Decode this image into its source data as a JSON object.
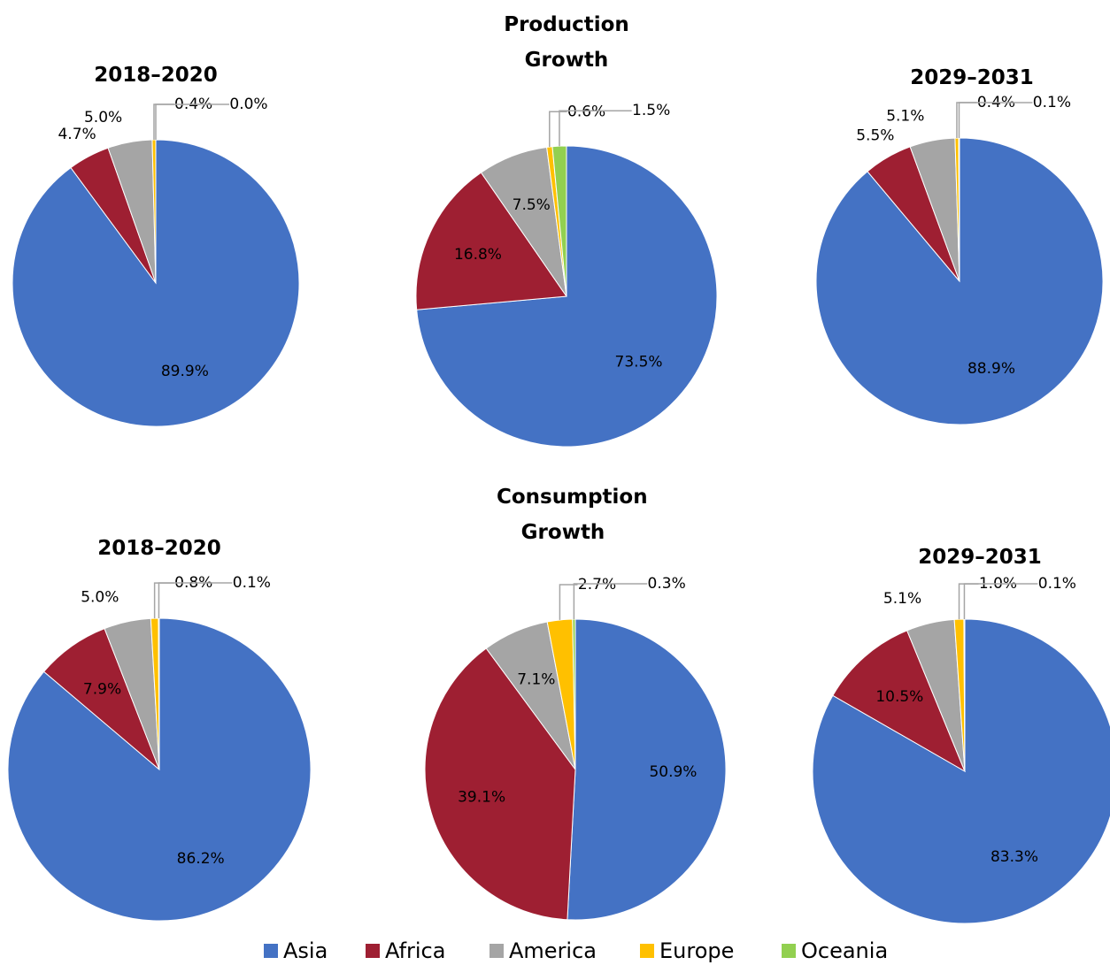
{
  "chart_data": [
    {
      "type": "pie",
      "title": "2018–2020",
      "categories": [
        "Asia",
        "Africa",
        "America",
        "Europe",
        "Oceania"
      ],
      "colors": [
        "#4472c4",
        "#9e1f32",
        "#a5a5a5",
        "#ffc000",
        "#92d050"
      ],
      "values": [
        89.9,
        4.7,
        5.0,
        0.4,
        0.0
      ],
      "value_labels": [
        "89.9%",
        "4.7%",
        "5.0%",
        "0.4%",
        "0.0%"
      ]
    },
    {
      "type": "pie",
      "title": "Production Growth",
      "categories": [
        "Asia",
        "Africa",
        "America",
        "Europe",
        "Oceania"
      ],
      "colors": [
        "#4472c4",
        "#9e1f32",
        "#a5a5a5",
        "#ffc000",
        "#92d050"
      ],
      "values": [
        73.5,
        16.8,
        7.5,
        0.6,
        1.5
      ],
      "value_labels": [
        "73.5%",
        "16.8%",
        "7.5%",
        "0.6%",
        "1.5%"
      ]
    },
    {
      "type": "pie",
      "title": "2029–2031",
      "categories": [
        "Asia",
        "Africa",
        "America",
        "Europe",
        "Oceania"
      ],
      "colors": [
        "#4472c4",
        "#9e1f32",
        "#a5a5a5",
        "#ffc000",
        "#92d050"
      ],
      "values": [
        88.9,
        5.5,
        5.1,
        0.4,
        0.1
      ],
      "value_labels": [
        "88.9%",
        "5.5%",
        "5.1%",
        "0.4%",
        "0.1%"
      ]
    },
    {
      "type": "pie",
      "title": "2018–2020",
      "categories": [
        "Asia",
        "Africa",
        "America",
        "Europe",
        "Oceania"
      ],
      "colors": [
        "#4472c4",
        "#9e1f32",
        "#a5a5a5",
        "#ffc000",
        "#92d050"
      ],
      "values": [
        86.2,
        7.9,
        5.0,
        0.8,
        0.1
      ],
      "value_labels": [
        "86.2%",
        "7.9%",
        "5.0%",
        "0.8%",
        "0.1%"
      ]
    },
    {
      "type": "pie",
      "title": "Consumption Growth",
      "categories": [
        "Asia",
        "Africa",
        "America",
        "Europe",
        "Oceania"
      ],
      "colors": [
        "#4472c4",
        "#9e1f32",
        "#a5a5a5",
        "#ffc000",
        "#92d050"
      ],
      "values": [
        50.9,
        39.1,
        7.1,
        2.7,
        0.3
      ],
      "value_labels": [
        "50.9%",
        "39.1%",
        "7.1%",
        "2.7%",
        "0.3%"
      ]
    },
    {
      "type": "pie",
      "title": "2029–2031",
      "categories": [
        "Asia",
        "Africa",
        "America",
        "Europe",
        "Oceania"
      ],
      "colors": [
        "#4472c4",
        "#9e1f32",
        "#a5a5a5",
        "#ffc000",
        "#92d050"
      ],
      "values": [
        83.3,
        10.5,
        5.1,
        1.0,
        0.1
      ],
      "value_labels": [
        "83.3%",
        "10.5%",
        "5.1%",
        "1.0%",
        "0.1%"
      ]
    }
  ]
}
